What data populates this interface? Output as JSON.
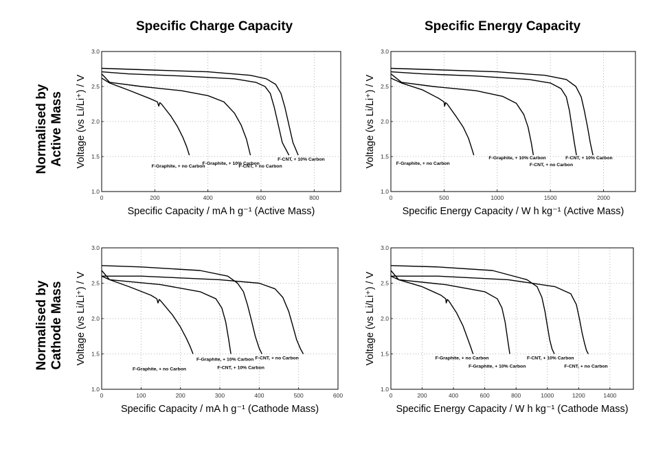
{
  "column_titles": [
    "Specific Charge Capacity",
    "Specific Energy Capacity"
  ],
  "row_titles": [
    [
      "Normalised by",
      "Active Mass"
    ],
    [
      "Normalised by",
      "Cathode Mass"
    ]
  ],
  "colors": {
    "line": "#000000",
    "grid": "#9a9a9a",
    "background": "#ffffff"
  },
  "chart_data": [
    {
      "type": "line",
      "xlabel": "Specific Capacity / mA h g⁻¹ (Active Mass)",
      "ylabel": "Voltage (vs Li/Li⁺) / V",
      "xlim": [
        0,
        900
      ],
      "ylim": [
        1.0,
        3.0
      ],
      "xticks": [
        "0",
        "200",
        "400",
        "600",
        "800"
      ],
      "yticks": [
        "1.0",
        "1.5",
        "2.0",
        "2.5",
        "3.0"
      ],
      "grid": true,
      "series": [
        {
          "name": "F-Graphite, + no Carbon",
          "x": [
            0,
            30,
            100,
            180,
            210,
            215,
            219,
            225,
            260,
            285,
            305,
            320,
            330
          ],
          "y": [
            2.62,
            2.55,
            2.45,
            2.33,
            2.28,
            2.22,
            2.27,
            2.25,
            2.08,
            1.93,
            1.78,
            1.64,
            1.52
          ]
        },
        {
          "name": "F-Graphite, + 10% Carbon",
          "x": [
            0,
            30,
            150,
            300,
            400,
            460,
            500,
            525,
            545,
            560
          ],
          "y": [
            2.68,
            2.56,
            2.5,
            2.44,
            2.37,
            2.28,
            2.12,
            1.95,
            1.75,
            1.52
          ]
        },
        {
          "name": "F-CNT, + no Carbon",
          "x": [
            0,
            100,
            300,
            500,
            580,
            615,
            635,
            650,
            662,
            680,
            705
          ],
          "y": [
            2.71,
            2.68,
            2.65,
            2.61,
            2.56,
            2.5,
            2.4,
            2.2,
            2.0,
            1.7,
            1.52
          ]
        },
        {
          "name": "F-CNT, + 10% Carbon",
          "x": [
            0,
            150,
            400,
            560,
            620,
            655,
            675,
            690,
            705,
            720,
            740
          ],
          "y": [
            2.76,
            2.74,
            2.71,
            2.66,
            2.61,
            2.53,
            2.4,
            2.2,
            1.95,
            1.7,
            1.52
          ]
        }
      ]
    },
    {
      "type": "line",
      "xlabel": "Specific Energy Capacity / W h kg⁻¹ (Active Mass)",
      "ylabel": "Voltage (vs Li/Li⁺) / V",
      "xlim": [
        0,
        2300
      ],
      "ylim": [
        1.0,
        3.0
      ],
      "xticks": [
        "0",
        "500",
        "1000",
        "1500",
        "2000"
      ],
      "yticks": [
        "1.0",
        "1.5",
        "2.0",
        "2.5",
        "3.0"
      ],
      "grid": true,
      "series": [
        {
          "name": "F-Graphite, + no Carbon",
          "x": [
            0,
            100,
            300,
            450,
            500,
            505,
            515,
            530,
            610,
            680,
            730,
            760,
            780
          ],
          "y": [
            2.62,
            2.55,
            2.45,
            2.33,
            2.28,
            2.22,
            2.27,
            2.25,
            2.08,
            1.92,
            1.76,
            1.62,
            1.52
          ]
        },
        {
          "name": "F-Graphite, + 10% Carbon",
          "x": [
            0,
            100,
            400,
            800,
            1050,
            1180,
            1250,
            1290,
            1320,
            1340
          ],
          "y": [
            2.68,
            2.56,
            2.5,
            2.44,
            2.36,
            2.26,
            2.1,
            1.92,
            1.7,
            1.52
          ]
        },
        {
          "name": "F-CNT, + no Carbon",
          "x": [
            0,
            300,
            800,
            1300,
            1500,
            1600,
            1650,
            1680,
            1700,
            1725,
            1745
          ],
          "y": [
            2.71,
            2.68,
            2.65,
            2.6,
            2.55,
            2.47,
            2.35,
            2.15,
            1.95,
            1.7,
            1.52
          ]
        },
        {
          "name": "F-CNT, + 10% Carbon",
          "x": [
            0,
            400,
            1000,
            1450,
            1650,
            1740,
            1790,
            1820,
            1850,
            1875,
            1900
          ],
          "y": [
            2.76,
            2.74,
            2.71,
            2.66,
            2.6,
            2.5,
            2.35,
            2.15,
            1.92,
            1.7,
            1.52
          ]
        }
      ]
    },
    {
      "type": "line",
      "xlabel": "Specific Capacity / mA h g⁻¹ (Cathode Mass)",
      "ylabel": "Voltage (vs Li/Li⁺) / V",
      "xlim": [
        0,
        600
      ],
      "ylim": [
        1.0,
        3.0
      ],
      "xticks": [
        "0",
        "100",
        "200",
        "300",
        "400",
        "500",
        "600"
      ],
      "yticks": [
        "1.0",
        "1.5",
        "2.0",
        "2.5",
        "3.0"
      ],
      "grid": true,
      "series": [
        {
          "name": "F-Graphite, + no Carbon",
          "x": [
            0,
            20,
            70,
            125,
            140,
            143,
            146,
            150,
            180,
            200,
            215,
            225,
            232
          ],
          "y": [
            2.6,
            2.55,
            2.45,
            2.33,
            2.28,
            2.22,
            2.27,
            2.25,
            2.05,
            1.88,
            1.72,
            1.6,
            1.5
          ]
        },
        {
          "name": "F-Graphite, + 10% Carbon",
          "x": [
            0,
            20,
            150,
            250,
            290,
            305,
            315,
            322,
            328
          ],
          "y": [
            2.68,
            2.55,
            2.48,
            2.38,
            2.28,
            2.15,
            1.95,
            1.72,
            1.5
          ]
        },
        {
          "name": "F-CNT, + 10% Carbon",
          "x": [
            0,
            100,
            250,
            320,
            345,
            360,
            370,
            380,
            390,
            400,
            407
          ],
          "y": [
            2.75,
            2.73,
            2.68,
            2.6,
            2.5,
            2.38,
            2.2,
            1.98,
            1.75,
            1.58,
            1.5
          ]
        },
        {
          "name": "F-CNT, + no Carbon",
          "x": [
            0,
            100,
            300,
            400,
            440,
            460,
            475,
            485,
            495,
            505,
            512
          ],
          "y": [
            2.6,
            2.6,
            2.55,
            2.5,
            2.42,
            2.3,
            2.1,
            1.9,
            1.7,
            1.57,
            1.5
          ]
        }
      ]
    },
    {
      "type": "line",
      "xlabel": "Specific Energy Capacity / W h kg⁻¹ (Cathode Mass)",
      "ylabel": "Voltage (vs Li/Li⁺) / V",
      "xlim": [
        0,
        1550
      ],
      "ylim": [
        1.0,
        3.0
      ],
      "xticks": [
        "0",
        "200",
        "400",
        "600",
        "800",
        "1000",
        "1200",
        "1400"
      ],
      "yticks": [
        "1.0",
        "1.5",
        "2.0",
        "2.5",
        "3.0"
      ],
      "grid": true,
      "series": [
        {
          "name": "F-Graphite, + no Carbon",
          "x": [
            0,
            50,
            200,
            320,
            350,
            354,
            360,
            370,
            420,
            460,
            490,
            510,
            525
          ],
          "y": [
            2.6,
            2.55,
            2.45,
            2.33,
            2.28,
            2.22,
            2.27,
            2.25,
            2.08,
            1.9,
            1.72,
            1.6,
            1.5
          ]
        },
        {
          "name": "F-Graphite, + 10% Carbon",
          "x": [
            0,
            50,
            350,
            600,
            680,
            710,
            730,
            745,
            760
          ],
          "y": [
            2.68,
            2.55,
            2.48,
            2.38,
            2.28,
            2.15,
            1.95,
            1.72,
            1.5
          ]
        },
        {
          "name": "F-CNT, + 10% Carbon",
          "x": [
            0,
            300,
            650,
            870,
            935,
            965,
            985,
            1000,
            1015,
            1030,
            1045
          ],
          "y": [
            2.75,
            2.73,
            2.68,
            2.55,
            2.45,
            2.3,
            2.1,
            1.9,
            1.7,
            1.57,
            1.5
          ]
        },
        {
          "name": "F-CNT, + no Carbon",
          "x": [
            0,
            300,
            750,
            1050,
            1150,
            1185,
            1205,
            1222,
            1238,
            1250,
            1262
          ],
          "y": [
            2.6,
            2.6,
            2.55,
            2.45,
            2.35,
            2.2,
            2.0,
            1.8,
            1.65,
            1.55,
            1.5
          ]
        }
      ]
    }
  ]
}
